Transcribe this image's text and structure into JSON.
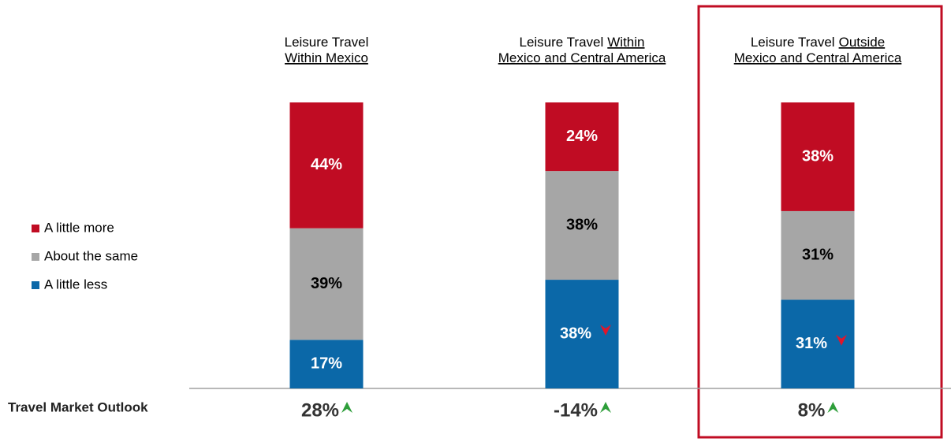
{
  "chart_data": {
    "type": "stacked_bar",
    "categories": [
      [
        {
          "text": "Leisure Travel",
          "underline": false,
          "line": 0
        },
        {
          "text": "Within Mexico",
          "underline": true,
          "line": 1
        }
      ],
      [
        {
          "text": "Leisure Travel",
          "underline": false,
          "line": 0
        },
        {
          "text": "Within",
          "underline": true,
          "line": 0
        },
        {
          "text": "Mexico and Central America",
          "underline": true,
          "line": 1
        }
      ],
      [
        {
          "text": "Leisure Travel",
          "underline": false,
          "line": 0
        },
        {
          "text": "Outside",
          "underline": true,
          "line": 0
        },
        {
          "text": "Mexico and Central America",
          "underline": true,
          "line": 1
        }
      ]
    ],
    "series": [
      {
        "name": "A little more",
        "color": "#c00c23",
        "label_color": "#ffffff",
        "values": [
          44,
          24,
          38
        ],
        "value_labels": [
          "44%",
          "24%",
          "38%"
        ]
      },
      {
        "name": "About the same",
        "color": "#a6a6a6",
        "label_color": "#000000",
        "values": [
          39,
          38,
          31
        ],
        "value_labels": [
          "39%",
          "38%",
          "31%"
        ]
      },
      {
        "name": "A little less",
        "color": "#0b68a8",
        "label_color": "#ffffff",
        "values": [
          17,
          38,
          31
        ],
        "value_labels": [
          "17%",
          "38%",
          "31%"
        ],
        "arrows": [
          null,
          "down",
          "down"
        ]
      }
    ],
    "ylim": [
      0,
      100
    ],
    "outlook": {
      "label": "Travel Market Outlook",
      "values": [
        28,
        -14,
        8
      ],
      "value_labels": [
        "28%",
        "-14%",
        "8%"
      ],
      "arrows": [
        "up",
        "up",
        "up"
      ]
    },
    "highlight": 2
  }
}
